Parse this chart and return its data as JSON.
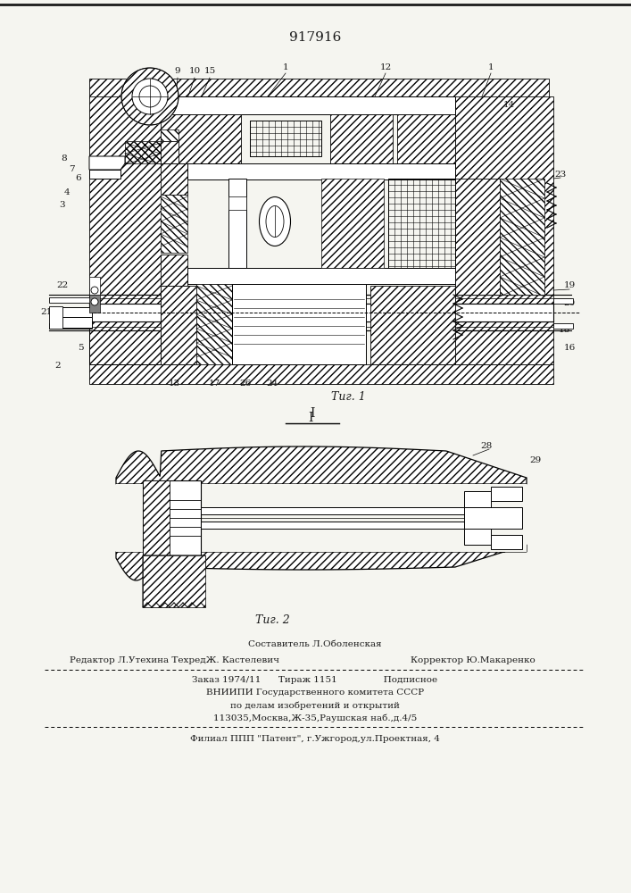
{
  "patent_number": "917916",
  "bg_color": "#f5f5f0",
  "line_color": "#1a1a1a",
  "footer_line1_center": "Составитель Л.Оболенская",
  "footer_line2_left": "Редактор Л.Утехина ТехредЖ. Кастелевич",
  "footer_line2_right": "Корректор Ю.Макаренко",
  "footer_line3": "Заказ 1974/11      Тираж 1151                Подписное",
  "footer_line4": "ВНИИПИ Государственного комитета СССР",
  "footer_line5": "по делам изобретений и открытий",
  "footer_line6": "113035,Москва,Ж-35,Раушская наб.,д.4/5",
  "footer_line7": "Филиал ППП \"Патент\", г.Ужгород,ул.Проектная, 4"
}
